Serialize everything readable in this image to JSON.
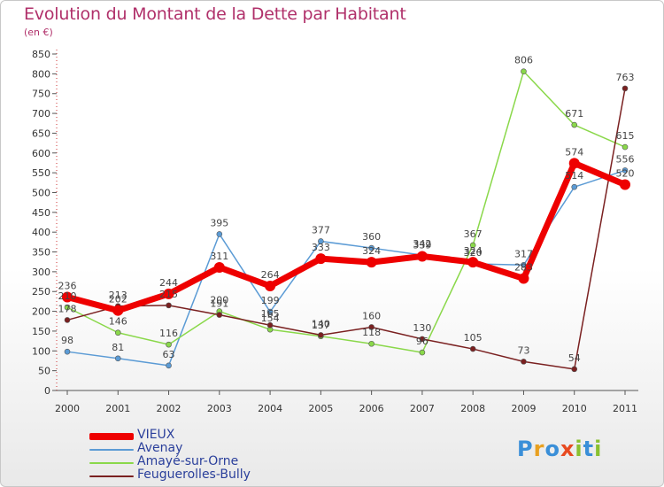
{
  "title": "Evolution du Montant de la Dette par Habitant",
  "subtitle": "(en €)",
  "logo_text": "Proxiti",
  "chart_data": {
    "type": "line",
    "title": "Evolution du Montant de la Dette par Habitant",
    "ylabel": "(en €)",
    "xlabel": "",
    "categories": [
      "2000",
      "2001",
      "2002",
      "2003",
      "2004",
      "2005",
      "2006",
      "2007",
      "2008",
      "2009",
      "2010",
      "2011"
    ],
    "ylim": [
      0,
      850
    ],
    "yticks": [
      0,
      50,
      100,
      150,
      200,
      250,
      300,
      350,
      400,
      450,
      500,
      550,
      600,
      650,
      700,
      750,
      800,
      850
    ],
    "grid": false,
    "legend_position": "bottom-left",
    "series": [
      {
        "name": "VIEUX",
        "color": "#ee0000",
        "width": 7,
        "values": [
          236,
          202,
          244,
          311,
          264,
          333,
          324,
          339,
          324,
          283,
          574,
          520
        ]
      },
      {
        "name": "Avenay",
        "color": "#5b9bd5",
        "width": 1.5,
        "values": [
          98,
          81,
          63,
          395,
          199,
          377,
          360,
          342,
          320,
          317,
          514,
          556
        ]
      },
      {
        "name": "Amayé-sur-Orne",
        "color": "#8ad84a",
        "width": 1.5,
        "values": [
          210,
          146,
          116,
          200,
          154,
          137,
          118,
          96,
          367,
          806,
          671,
          615
        ]
      },
      {
        "name": "Feuguerolles-Bully",
        "color": "#7a2020",
        "width": 1.5,
        "values": [
          178,
          213,
          215,
          191,
          165,
          140,
          160,
          130,
          105,
          73,
          54,
          763
        ]
      }
    ],
    "data_labels": {
      "VIEUX": [
        "236",
        "202",
        "244",
        "311",
        "264",
        "333",
        "324",
        "339",
        "324",
        "283",
        "574",
        "520"
      ],
      "Avenay": [
        "98",
        "81",
        "63",
        "395",
        "199",
        "377",
        "360",
        "342",
        "320",
        "317",
        "514",
        "556"
      ],
      "Amayé-sur-Orne": [
        "210",
        "146",
        "116",
        "200",
        "154",
        "137",
        "118",
        "96",
        "367",
        "806",
        "671",
        "615"
      ],
      "Feuguerolles-Bully": [
        "178",
        "213",
        "215",
        "191",
        "165",
        "140",
        "160",
        "130",
        "105",
        "73",
        "54",
        "763"
      ]
    }
  }
}
